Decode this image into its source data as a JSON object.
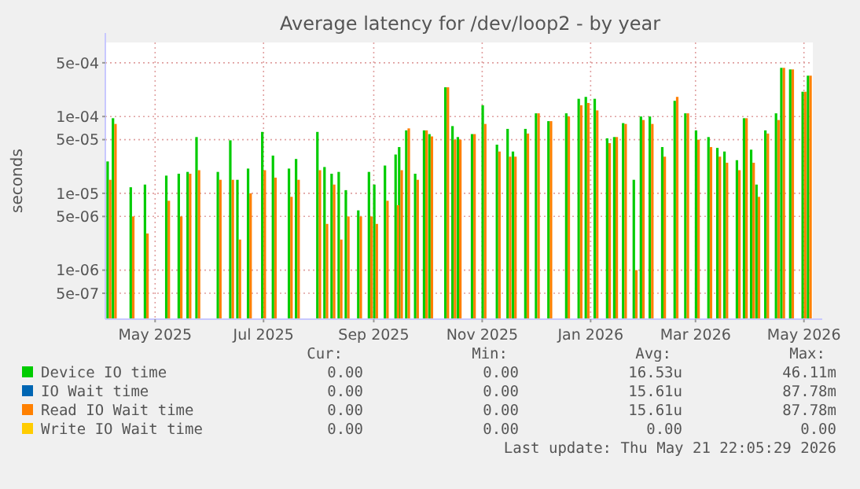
{
  "chart_data": {
    "type": "bar",
    "title": "Average latency for /dev/loop2 - by year",
    "ylabel": "seconds",
    "log": "y",
    "grid": true,
    "legend": "bottom",
    "xlim": [
      "2025-04-03",
      "2026-05-06"
    ],
    "xticks": [
      {
        "value": "2025-05-01",
        "label": "May 2025"
      },
      {
        "value": "2025-07-01",
        "label": "Jul 2025"
      },
      {
        "value": "2025-09-01",
        "label": "Sep 2025"
      },
      {
        "value": "2025-11-01",
        "label": "Nov 2025"
      },
      {
        "value": "2026-01-01",
        "label": "Jan 2026"
      },
      {
        "value": "2026-03-01",
        "label": "Mar 2026"
      },
      {
        "value": "2026-05-01",
        "label": "May 2026"
      }
    ],
    "ylim": [
      2.3e-07,
      0.00092
    ],
    "yticks": [
      {
        "value": 5e-07,
        "label": "5e-07"
      },
      {
        "value": 1e-06,
        "label": "1e-06"
      },
      {
        "value": 5e-06,
        "label": "5e-06"
      },
      {
        "value": 1e-05,
        "label": "1e-05"
      },
      {
        "value": 5e-05,
        "label": "5e-05"
      },
      {
        "value": 0.0001,
        "label": "1e-04"
      },
      {
        "value": 0.0005,
        "label": "5e-04"
      }
    ],
    "x": [
      "2025-04-05",
      "2025-04-08",
      "2025-04-18",
      "2025-04-26",
      "2025-05-08",
      "2025-05-15",
      "2025-05-20",
      "2025-05-25",
      "2025-06-06",
      "2025-06-13",
      "2025-06-17",
      "2025-06-23",
      "2025-07-01",
      "2025-07-07",
      "2025-07-16",
      "2025-07-20",
      "2025-08-01",
      "2025-08-05",
      "2025-08-09",
      "2025-08-13",
      "2025-08-17",
      "2025-08-24",
      "2025-08-30",
      "2025-09-02",
      "2025-09-08",
      "2025-09-14",
      "2025-09-16",
      "2025-09-20",
      "2025-09-25",
      "2025-09-30",
      "2025-10-03",
      "2025-10-12",
      "2025-10-16",
      "2025-10-19",
      "2025-10-27",
      "2025-11-02",
      "2025-11-10",
      "2025-11-16",
      "2025-11-19",
      "2025-11-26",
      "2025-12-02",
      "2025-12-09",
      "2025-12-19",
      "2025-12-26",
      "2025-12-30",
      "2026-01-04",
      "2026-01-11",
      "2026-01-15",
      "2026-01-20",
      "2026-01-26",
      "2026-01-30",
      "2026-02-04",
      "2026-02-11",
      "2026-02-18",
      "2026-02-24",
      "2026-03-02",
      "2026-03-09",
      "2026-03-14",
      "2026-03-18",
      "2026-03-25",
      "2026-03-29",
      "2026-04-02",
      "2026-04-05",
      "2026-04-10",
      "2026-04-16",
      "2026-04-19",
      "2026-04-24",
      "2026-05-01",
      "2026-05-04"
    ],
    "series": [
      {
        "name": "Device IO time",
        "color": "#00cc00",
        "values": [
          2.6e-05,
          9.5e-05,
          1.2e-05,
          1.3e-05,
          1.7e-05,
          1.8e-05,
          1.9e-05,
          5.4e-05,
          1.9e-05,
          4.9e-05,
          1.5e-05,
          2.1e-05,
          6.3e-05,
          3.1e-05,
          2.1e-05,
          2.8e-05,
          6.3e-05,
          2.2e-05,
          1.8e-05,
          1.9e-05,
          1.1e-05,
          6e-06,
          1.9e-05,
          1.3e-05,
          2.3e-05,
          3.2e-05,
          4e-05,
          6.6e-05,
          1.8e-05,
          6.6e-05,
          5.9e-05,
          0.00024,
          7.5e-05,
          5.4e-05,
          5.9e-05,
          0.00014,
          4.3e-05,
          6.9e-05,
          3.5e-05,
          6.9e-05,
          0.00011,
          8.7e-05,
          0.00011,
          0.00017,
          0.00018,
          0.00017,
          5.2e-05,
          5.4e-05,
          8.2e-05,
          1.5e-05,
          0.0001,
          0.0001,
          4e-05,
          0.00016,
          0.00011,
          6.6e-05,
          5.4e-05,
          3.9e-05,
          3.5e-05,
          2.7e-05,
          9.5e-05,
          3.7e-05,
          1.3e-05,
          6.6e-05,
          0.00011,
          0.00043,
          0.00041,
          0.00021,
          0.00034
        ]
      },
      {
        "name": "IO Wait time",
        "color": "#0066b3",
        "values": [
          null,
          null,
          null,
          null,
          null,
          null,
          null,
          null,
          null,
          null,
          null,
          null,
          null,
          null,
          null,
          null,
          null,
          null,
          null,
          null,
          null,
          null,
          null,
          null,
          null,
          null,
          null,
          null,
          null,
          null,
          null,
          null,
          null,
          null,
          null,
          null,
          null,
          null,
          null,
          null,
          null,
          null,
          null,
          null,
          null,
          null,
          null,
          null,
          null,
          null,
          null,
          null,
          null,
          null,
          null,
          null,
          null,
          null,
          null,
          null,
          null,
          null,
          null,
          null,
          null,
          null,
          null,
          null,
          null
        ]
      },
      {
        "name": "Read IO Wait time",
        "color": "#ff8000",
        "values": [
          1.5e-05,
          8e-05,
          5e-06,
          3e-06,
          8e-06,
          5e-06,
          1.8e-05,
          2e-05,
          1.5e-05,
          1.5e-05,
          2.5e-06,
          1e-05,
          2e-05,
          1.6e-05,
          9e-06,
          1.5e-05,
          2e-05,
          4e-06,
          1.3e-05,
          2.5e-06,
          5e-06,
          5e-06,
          5e-06,
          4e-06,
          8e-06,
          7e-06,
          2e-05,
          7e-05,
          1.5e-05,
          6.6e-05,
          5.5e-05,
          0.00024,
          5e-05,
          5e-05,
          5.9e-05,
          8e-05,
          3.5e-05,
          3e-05,
          3e-05,
          6e-05,
          0.00011,
          8.7e-05,
          0.0001,
          0.00014,
          0.00015,
          0.00012,
          4.5e-05,
          5.4e-05,
          8e-05,
          1e-06,
          9e-05,
          8e-05,
          3e-05,
          0.00018,
          0.00011,
          5e-05,
          4e-05,
          3e-05,
          2.5e-05,
          2e-05,
          9.5e-05,
          2.5e-05,
          9e-06,
          6e-05,
          9e-05,
          0.00043,
          0.00041,
          0.00021,
          0.00034
        ]
      },
      {
        "name": "Write IO Wait time",
        "color": "#ffcc00",
        "values": [
          null,
          null,
          null,
          null,
          null,
          null,
          null,
          null,
          null,
          null,
          null,
          null,
          null,
          null,
          null,
          null,
          null,
          null,
          null,
          null,
          null,
          null,
          null,
          null,
          null,
          null,
          null,
          null,
          null,
          null,
          null,
          null,
          null,
          null,
          null,
          null,
          null,
          null,
          null,
          null,
          null,
          null,
          null,
          null,
          null,
          null,
          null,
          null,
          null,
          null,
          null,
          null,
          null,
          null,
          null,
          null,
          null,
          null,
          null,
          null,
          null,
          null,
          null,
          null,
          null,
          null,
          null,
          null,
          null
        ]
      }
    ],
    "annotations": [
      "Cur:",
      "Min:",
      "Avg:",
      "Max:",
      "0.00",
      "0.00",
      "16.53u",
      "46.11m",
      "0.00",
      "0.00",
      "15.61u",
      "87.78m",
      "0.00",
      "0.00",
      "15.61u",
      "87.78m",
      "0.00",
      "0.00",
      "0.00",
      "0.00",
      "Last update: Thu May 21 22:05:29 2026"
    ]
  }
}
